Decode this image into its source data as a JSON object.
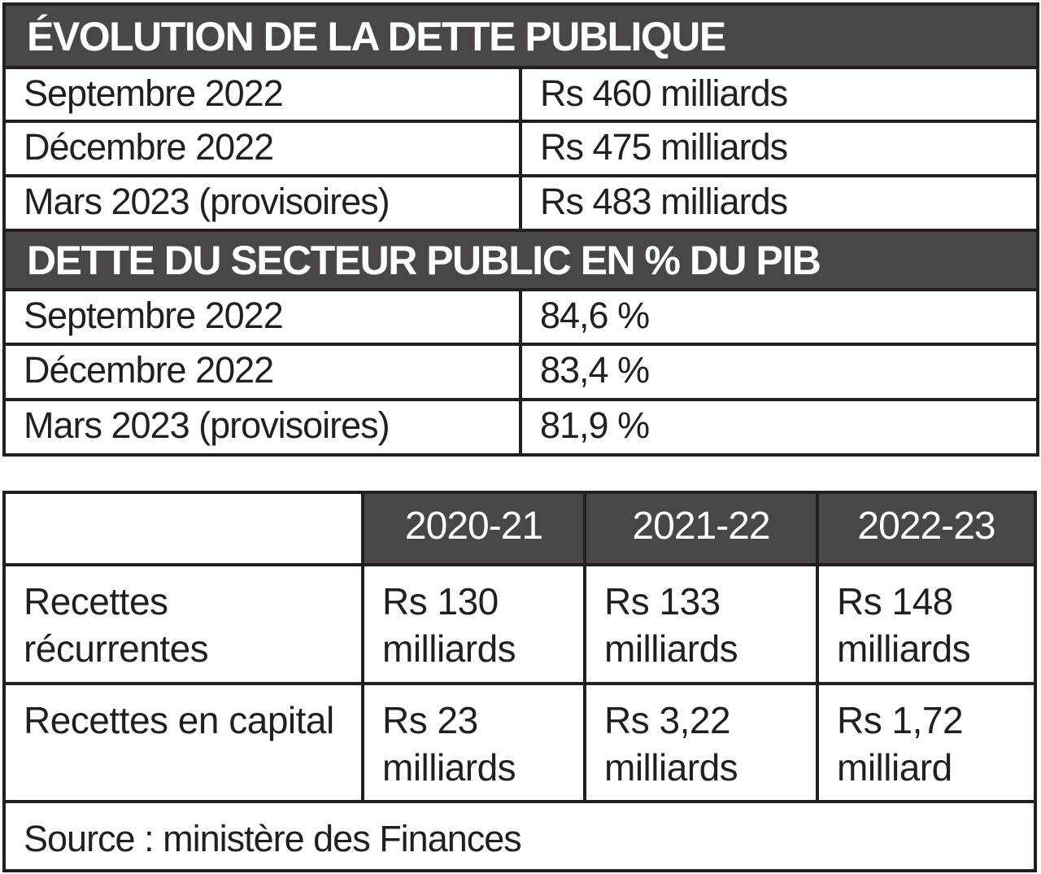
{
  "chart_data": [
    {
      "type": "table",
      "title": "ÉVOLUTION DE LA DETTE PUBLIQUE",
      "rows": [
        {
          "period": "Septembre 2022",
          "value": "Rs 460 milliards"
        },
        {
          "period": "Décembre 2022",
          "value": "Rs 475 milliards"
        },
        {
          "period": "Mars 2023 (provisoires)",
          "value": "Rs 483 milliards"
        }
      ]
    },
    {
      "type": "table",
      "title": "DETTE DU SECTEUR PUBLIC EN % DU PIB",
      "rows": [
        {
          "period": "Septembre 2022",
          "value": "84,6 %"
        },
        {
          "period": "Décembre 2022",
          "value": "83,4 %"
        },
        {
          "period": "Mars 2023 (provisoires)",
          "value": "81,9 %"
        }
      ]
    },
    {
      "type": "table",
      "columns": [
        "2020-21",
        "2021-22",
        "2022-23"
      ],
      "rows": [
        {
          "label": "Recettes récurrentes",
          "values": [
            "Rs 130 milliards",
            "Rs 133 milliards",
            "Rs 148 milliards"
          ]
        },
        {
          "label": "Recettes en capital",
          "values": [
            "Rs 23 milliards",
            "Rs 3,22 milliards",
            "Rs 1,72 milliard"
          ]
        }
      ],
      "source": "Source : ministère des Finances"
    }
  ],
  "colors": {
    "header": "#4a4546",
    "border": "#231f20"
  }
}
